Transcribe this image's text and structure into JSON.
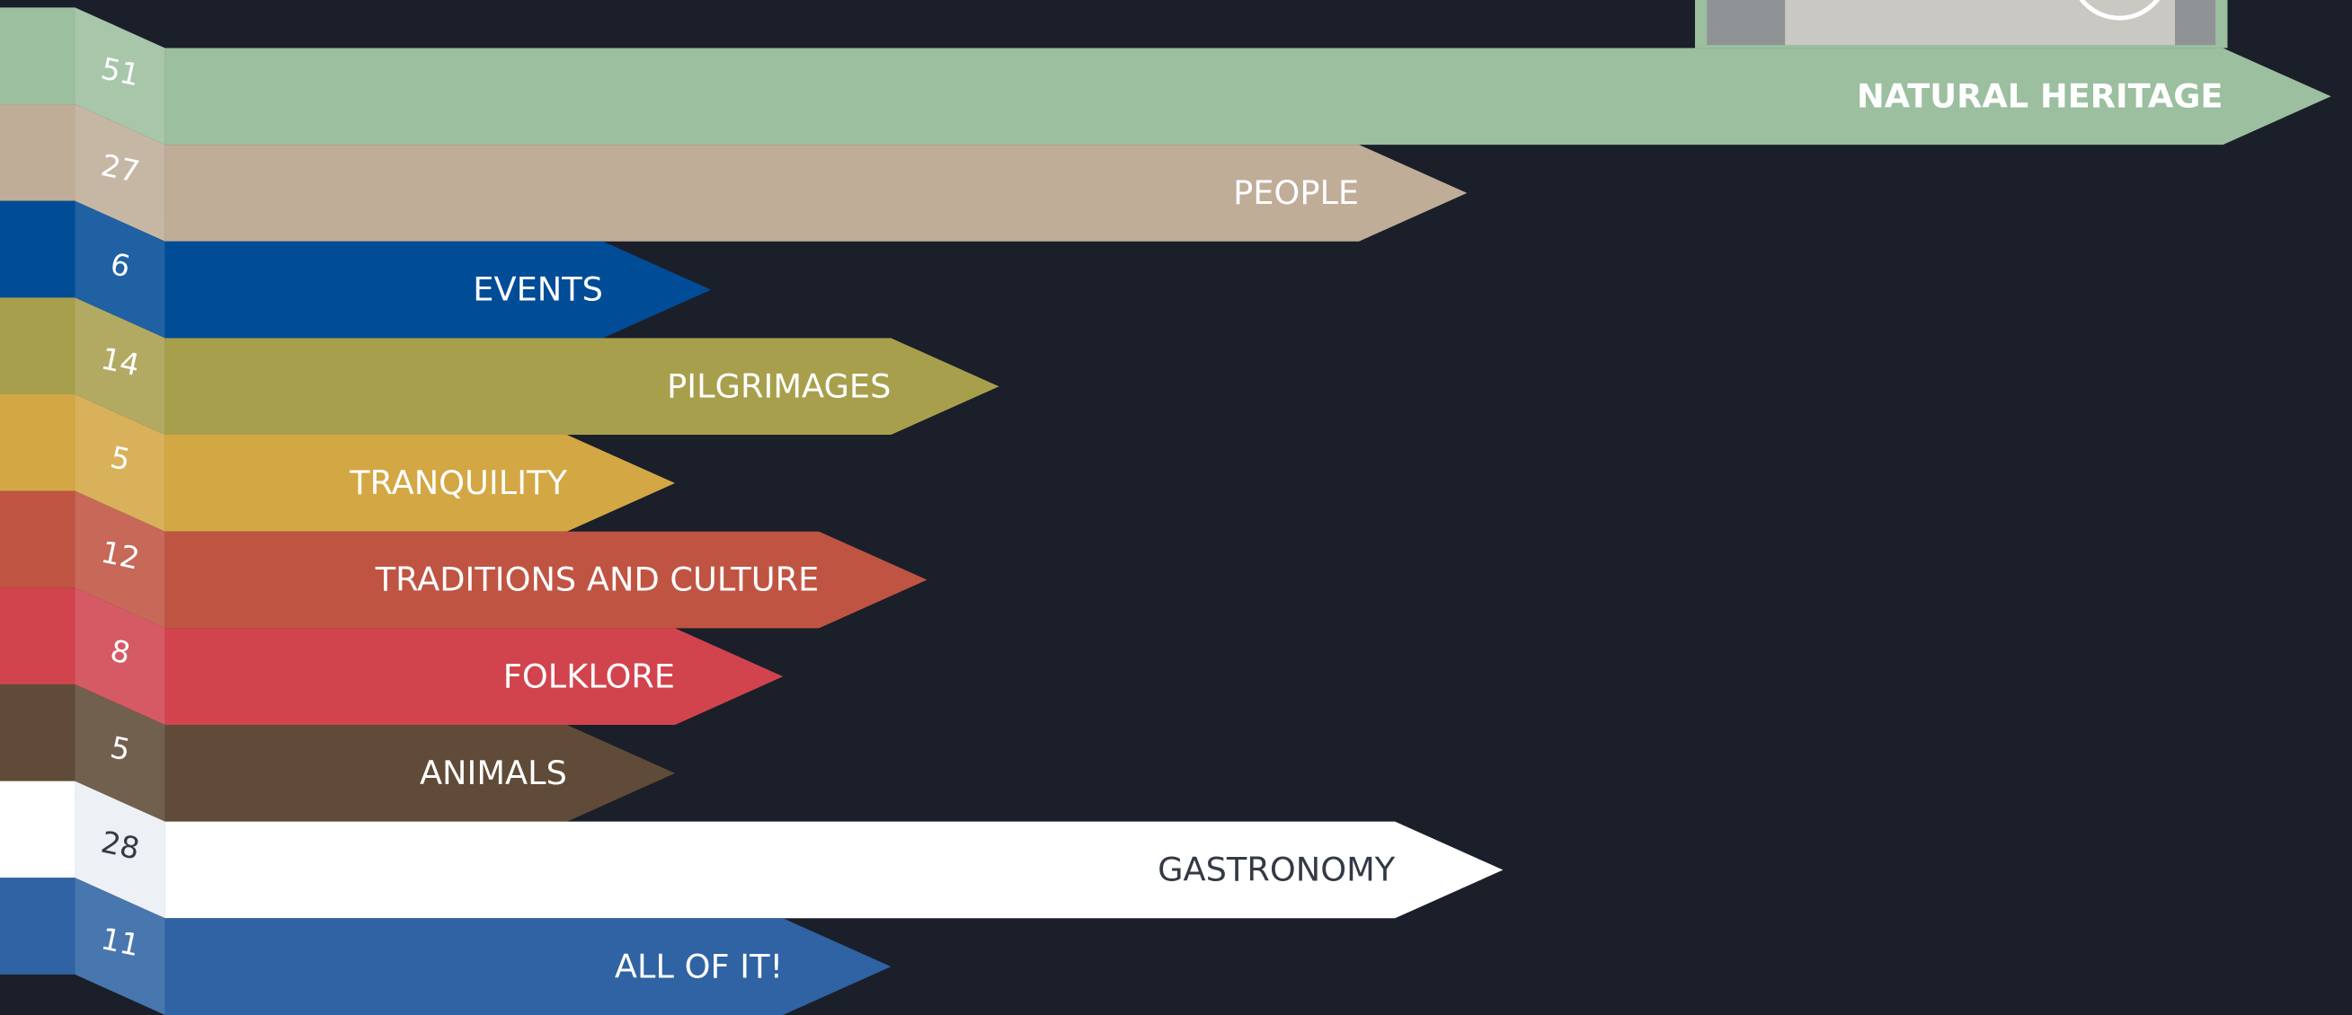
{
  "chart_data": {
    "type": "bar",
    "categories": [
      "NATURAL HERITAGE",
      "PEOPLE",
      "EVENTS",
      "PILGRIMAGES",
      "TRANQUILITY",
      "TRADITIONS AND CULTURE",
      "FOLKLORE",
      "ANIMALS",
      "GASTRONOMY",
      "ALL OF IT!"
    ],
    "values": [
      51,
      27,
      6,
      14,
      5,
      12,
      8,
      5,
      28,
      11
    ],
    "colors": [
      "#9bbf9f",
      "#bfad98",
      "#004c97",
      "#a89f4d",
      "#d3a744",
      "#c05443",
      "#d1444e",
      "#5f4b37",
      "#ffffff",
      "#2f63a3"
    ]
  }
}
